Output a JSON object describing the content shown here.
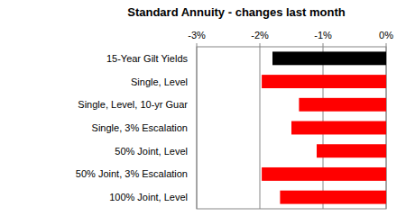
{
  "chart_data": {
    "type": "bar",
    "orientation": "horizontal",
    "title": "Standard Annuity - changes last month",
    "categories": [
      "15-Year Gilt Yields",
      "Single, Level",
      "Single, Level, 10-yr Guar",
      "Single, 3% Escalation",
      "50% Joint, Level",
      "50% Joint, 3% Escalation",
      "100% Joint, Level"
    ],
    "values": [
      -1.8,
      -1.97,
      -1.38,
      -1.5,
      -1.1,
      -1.97,
      -1.68
    ],
    "colors": [
      "#000000",
      "#ff0000",
      "#ff0000",
      "#ff0000",
      "#ff0000",
      "#ff0000",
      "#ff0000"
    ],
    "xlim": [
      -3,
      0
    ],
    "xticks": [
      {
        "value": -3,
        "label": "-3%"
      },
      {
        "value": -2,
        "label": "-2%"
      },
      {
        "value": -1,
        "label": "-1%"
      },
      {
        "value": 0,
        "label": "0%"
      }
    ],
    "grid": true
  }
}
